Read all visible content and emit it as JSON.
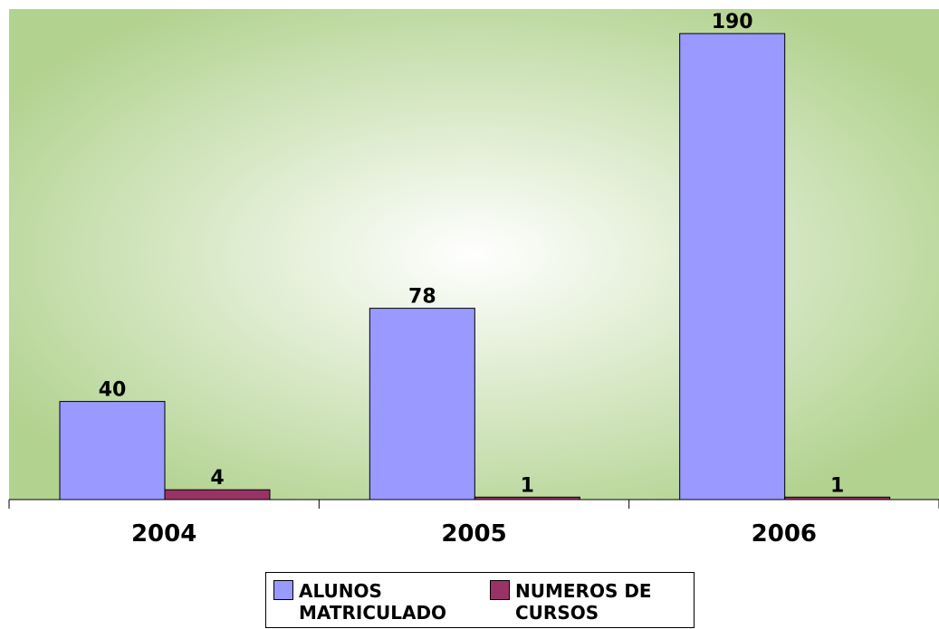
{
  "chart_data": {
    "type": "bar",
    "categories": [
      "2004",
      "2005",
      "2006"
    ],
    "series": [
      {
        "name": "ALUNOS MATRICULADO",
        "color": "#9999ff",
        "values": [
          40,
          78,
          190
        ]
      },
      {
        "name": "NUMEROS DE CURSOS",
        "color": "#993366",
        "values": [
          4,
          1,
          1
        ]
      }
    ],
    "ylim": [
      0,
      200
    ]
  }
}
